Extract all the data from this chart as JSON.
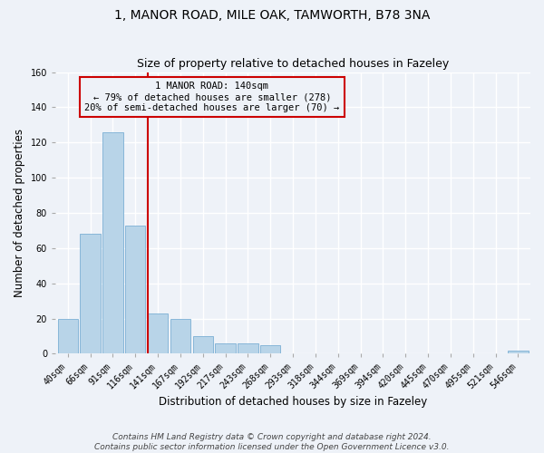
{
  "title": "1, MANOR ROAD, MILE OAK, TAMWORTH, B78 3NA",
  "subtitle": "Size of property relative to detached houses in Fazeley",
  "xlabel": "Distribution of detached houses by size in Fazeley",
  "ylabel": "Number of detached properties",
  "bin_labels": [
    "40sqm",
    "66sqm",
    "91sqm",
    "116sqm",
    "141sqm",
    "167sqm",
    "192sqm",
    "217sqm",
    "243sqm",
    "268sqm",
    "293sqm",
    "318sqm",
    "344sqm",
    "369sqm",
    "394sqm",
    "420sqm",
    "445sqm",
    "470sqm",
    "495sqm",
    "521sqm",
    "546sqm"
  ],
  "bar_values": [
    20,
    68,
    126,
    73,
    23,
    20,
    10,
    6,
    6,
    5,
    0,
    0,
    0,
    0,
    0,
    0,
    0,
    0,
    0,
    0,
    2
  ],
  "bar_color": "#b8d4e8",
  "bar_edgecolor": "#7bafd4",
  "vline_index": 4,
  "vline_color": "#cc0000",
  "annotation_title": "1 MANOR ROAD: 140sqm",
  "annotation_line1": "← 79% of detached houses are smaller (278)",
  "annotation_line2": "20% of semi-detached houses are larger (70) →",
  "annotation_box_edgecolor": "#cc0000",
  "ylim": [
    0,
    160
  ],
  "yticks": [
    0,
    20,
    40,
    60,
    80,
    100,
    120,
    140,
    160
  ],
  "footer1": "Contains HM Land Registry data © Crown copyright and database right 2024.",
  "footer2": "Contains public sector information licensed under the Open Government Licence v3.0.",
  "bg_color": "#eef2f8",
  "grid_color": "#ffffff",
  "title_fontsize": 10,
  "subtitle_fontsize": 9,
  "axis_label_fontsize": 8.5,
  "tick_fontsize": 7,
  "annotation_fontsize": 7.5,
  "footer_fontsize": 6.5
}
